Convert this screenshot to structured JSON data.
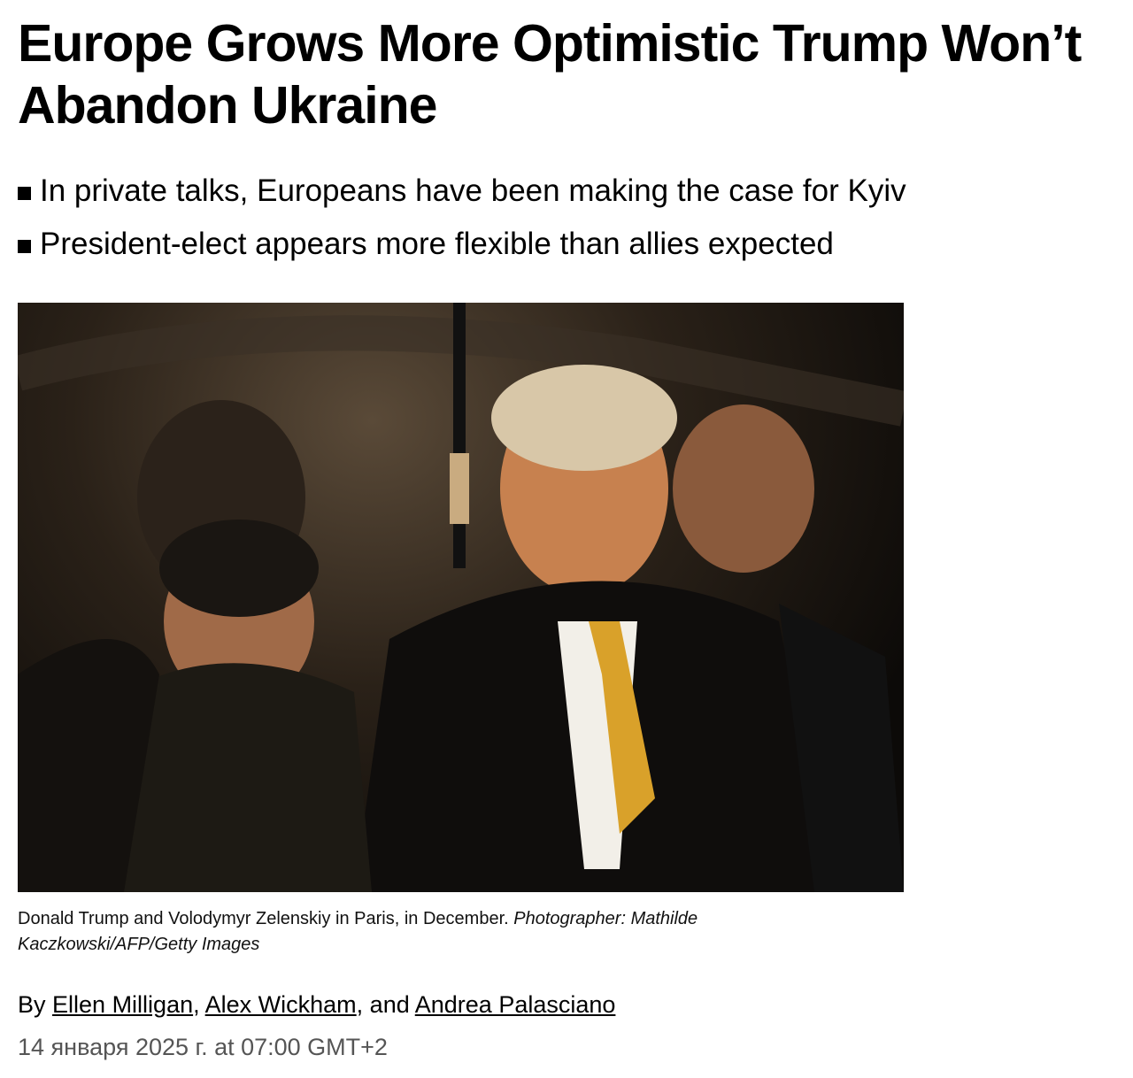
{
  "article": {
    "title": "Europe Grows More Optimistic Trump Won’t Abandon Ukraine",
    "bullets": [
      "In private talks, Europeans have been making the case for Kyiv",
      "President-elect appears more flexible than allies expected"
    ],
    "photo": {
      "caption": "Donald Trump and Volodymyr Zelenskiy in Paris, in December.",
      "credit": "Photographer: Mathilde Kaczkowski/AFP/Getty Images"
    },
    "byline": {
      "prefix": "By",
      "authors": [
        "Ellen Milligan",
        "Alex Wickham",
        "Andrea Palasciano"
      ],
      "sep1": ",",
      "sep2": ", and"
    },
    "date": "14 января 2025 г. at 07:00 GMT+2"
  }
}
